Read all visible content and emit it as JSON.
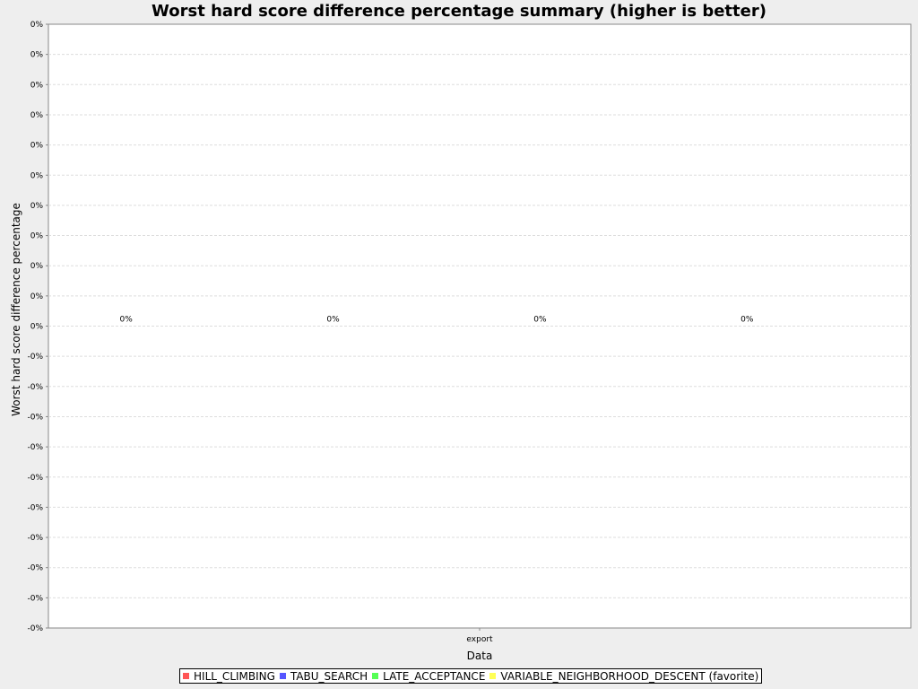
{
  "chart_data": {
    "type": "bar",
    "title": "Worst hard score difference percentage summary (higher is better)",
    "xlabel": "Data",
    "ylabel": "Worst hard score difference percentage",
    "categories": [
      "export"
    ],
    "series": [
      {
        "name": "HILL_CLIMBING",
        "color": "#ff5555",
        "values": [
          0
        ],
        "value_labels": [
          "0%"
        ]
      },
      {
        "name": "TABU_SEARCH",
        "color": "#5555ff",
        "values": [
          0
        ],
        "value_labels": [
          "0%"
        ]
      },
      {
        "name": "LATE_ACCEPTANCE",
        "color": "#55ff55",
        "values": [
          0
        ],
        "value_labels": [
          "0%"
        ]
      },
      {
        "name": "VARIABLE_NEIGHBORHOOD_DESCENT (favorite)",
        "color": "#ffff55",
        "values": [
          0
        ],
        "value_labels": [
          "0%"
        ]
      }
    ],
    "y_tick_labels": [
      "0%",
      "0%",
      "0%",
      "0%",
      "0%",
      "0%",
      "0%",
      "0%",
      "0%",
      "0%",
      "0%",
      "-0%",
      "-0%",
      "-0%",
      "-0%",
      "-0%",
      "-0%",
      "-0%",
      "-0%",
      "-0%",
      "-0%"
    ],
    "grid": true,
    "legend_position": "bottom"
  }
}
